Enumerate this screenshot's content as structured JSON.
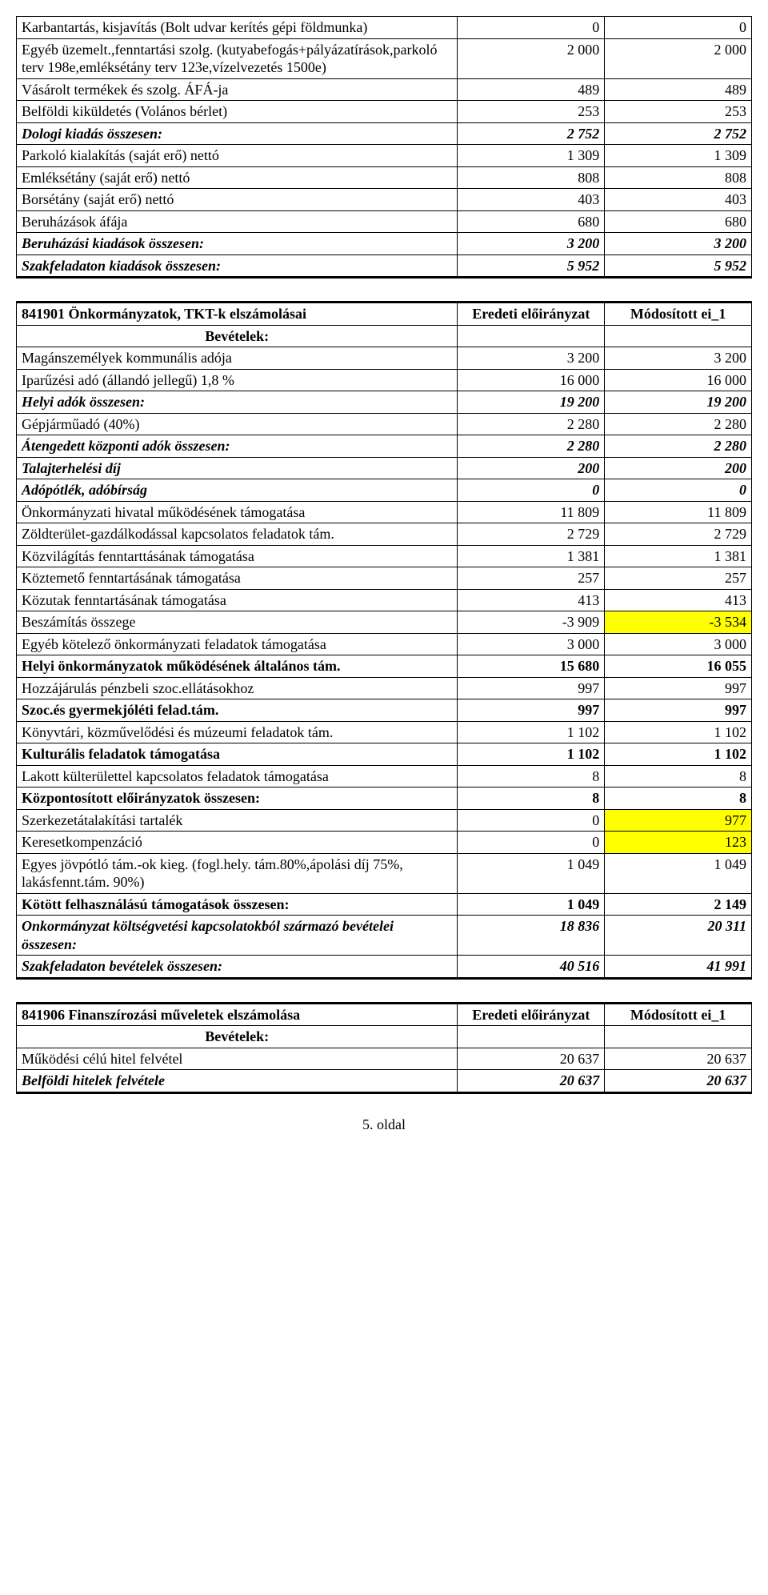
{
  "table1": {
    "rows": [
      {
        "label": "Karbantartás, kisjavítás (Bolt udvar kerítés gépi földmunka)",
        "c1": "0",
        "c2": "0",
        "cls": ""
      },
      {
        "label": "Egyéb üzemelt.,fenntartási szolg. (kutyabefogás+pályázatírások,parkoló terv 198e,emléksétány terv 123e,vízelvezetés 1500e)",
        "c1": "2 000",
        "c2": "2 000",
        "cls": ""
      },
      {
        "label": "Vásárolt termékek és szolg. ÁFÁ-ja",
        "c1": "489",
        "c2": "489",
        "cls": ""
      },
      {
        "label": "Belföldi kiküldetés (Volános bérlet)",
        "c1": "253",
        "c2": "253",
        "cls": ""
      },
      {
        "label": "Dologi kiadás összesen:",
        "c1": "2 752",
        "c2": "2 752",
        "cls": "bi"
      },
      {
        "label": "Parkoló kialakítás (saját erő) nettó",
        "c1": "1 309",
        "c2": "1 309",
        "cls": ""
      },
      {
        "label": "Emléksétány (saját erő) nettó",
        "c1": "808",
        "c2": "808",
        "cls": ""
      },
      {
        "label": "Borsétány (saját erő) nettó",
        "c1": "403",
        "c2": "403",
        "cls": ""
      },
      {
        "label": "Beruházások áfája",
        "c1": "680",
        "c2": "680",
        "cls": ""
      },
      {
        "label": "Beruházási kiadások összesen:",
        "c1": "3 200",
        "c2": "3 200",
        "cls": "bi"
      },
      {
        "label": "Szakfeladaton kiadások összesen:",
        "c1": "5 952",
        "c2": "5 952",
        "cls": "bi"
      }
    ]
  },
  "table2": {
    "title": "841901 Önkormányzatok, TKT-k elszámolásai",
    "h1": "Eredeti előirányzat",
    "h2": "Módosított ei_1",
    "sub": "Bevételek:",
    "rows": [
      {
        "label": "Magánszemélyek kommunális adója",
        "c1": "3 200",
        "c2": "3 200",
        "cls": ""
      },
      {
        "label": "Iparűzési adó (állandó jellegű) 1,8 %",
        "c1": "16 000",
        "c2": "16 000",
        "cls": ""
      },
      {
        "label": "Helyi adók összesen:",
        "c1": "19 200",
        "c2": "19 200",
        "cls": "bi"
      },
      {
        "label": "Gépjárműadó (40%)",
        "c1": "2 280",
        "c2": "2 280",
        "cls": ""
      },
      {
        "label": "Átengedett központi adók összesen:",
        "c1": "2 280",
        "c2": "2 280",
        "cls": "bi"
      },
      {
        "label": "Talajterhelési díj",
        "c1": "200",
        "c2": "200",
        "cls": "bi"
      },
      {
        "label": "Adópótlék, adóbírság",
        "c1": "0",
        "c2": "0",
        "cls": "bi"
      },
      {
        "label": "Önkormányzati hivatal működésének támogatása",
        "c1": "11 809",
        "c2": "11 809",
        "cls": ""
      },
      {
        "label": "Zöldterület-gazdálkodással kapcsolatos feladatok tám.",
        "c1": "2 729",
        "c2": "2 729",
        "cls": ""
      },
      {
        "label": "Közvilágítás fenntarttásának támogatása",
        "c1": "1 381",
        "c2": "1 381",
        "cls": ""
      },
      {
        "label": "Köztemető fenntartásának támogatása",
        "c1": "257",
        "c2": "257",
        "cls": ""
      },
      {
        "label": "Közutak fenntartásának támogatása",
        "c1": "413",
        "c2": "413",
        "cls": ""
      },
      {
        "label": "Beszámítás összege",
        "c1": "-3 909",
        "c2": "-3 534",
        "cls": "",
        "hl2": true
      },
      {
        "label": "Egyéb kötelező önkormányzati feladatok támogatása",
        "c1": "3 000",
        "c2": "3 000",
        "cls": ""
      },
      {
        "label": "Helyi önkormányzatok működésének általános tám.",
        "c1": "15 680",
        "c2": "16 055",
        "cls": "bold"
      },
      {
        "label": "Hozzájárulás pénzbeli szoc.ellátásokhoz",
        "c1": "997",
        "c2": "997",
        "cls": ""
      },
      {
        "label": "Szoc.és gyermekjóléti felad.tám.",
        "c1": "997",
        "c2": "997",
        "cls": "bold"
      },
      {
        "label": "Könyvtári, közművelődési és múzeumi feladatok tám.",
        "c1": "1 102",
        "c2": "1 102",
        "cls": ""
      },
      {
        "label": "Kulturális feladatok támogatása",
        "c1": "1 102",
        "c2": "1 102",
        "cls": "bold"
      },
      {
        "label": "Lakott külterülettel kapcsolatos feladatok támogatása",
        "c1": "8",
        "c2": "8",
        "cls": ""
      },
      {
        "label": "Központosított előirányzatok összesen:",
        "c1": "8",
        "c2": "8",
        "cls": "bold"
      },
      {
        "label": "Szerkezetátalakítási tartalék",
        "c1": "0",
        "c2": "977",
        "cls": "",
        "hl2": true
      },
      {
        "label": "Keresetkompenzáció",
        "c1": "0",
        "c2": "123",
        "cls": "",
        "hl2": true
      },
      {
        "label": "Egyes jövpótló tám.-ok kieg. (fogl.hely. tám.80%,ápolási díj 75%, lakásfennt.tám. 90%)",
        "c1": "1 049",
        "c2": "1 049",
        "cls": ""
      },
      {
        "label": "Kötött felhasználású támogatások összesen:",
        "c1": "1 049",
        "c2": "2 149",
        "cls": "bold"
      },
      {
        "label": "Onkormányzat költségvetési kapcsolatokból származó bevételei összesen:",
        "c1": "18 836",
        "c2": "20 311",
        "cls": "bi"
      },
      {
        "label": "Szakfeladaton bevételek összesen:",
        "c1": "40 516",
        "c2": "41 991",
        "cls": "bi"
      }
    ]
  },
  "table3": {
    "title": "841906 Finanszírozási műveletek elszámolása",
    "h1": "Eredeti előirányzat",
    "h2": "Módosított ei_1",
    "sub": "Bevételek:",
    "rows": [
      {
        "label": "Működési célú hitel felvétel",
        "c1": "20 637",
        "c2": "20 637",
        "cls": ""
      },
      {
        "label": "Belföldi hitelek felvétele",
        "c1": "20 637",
        "c2": "20 637",
        "cls": "bi"
      }
    ]
  },
  "footer": "5. oldal"
}
